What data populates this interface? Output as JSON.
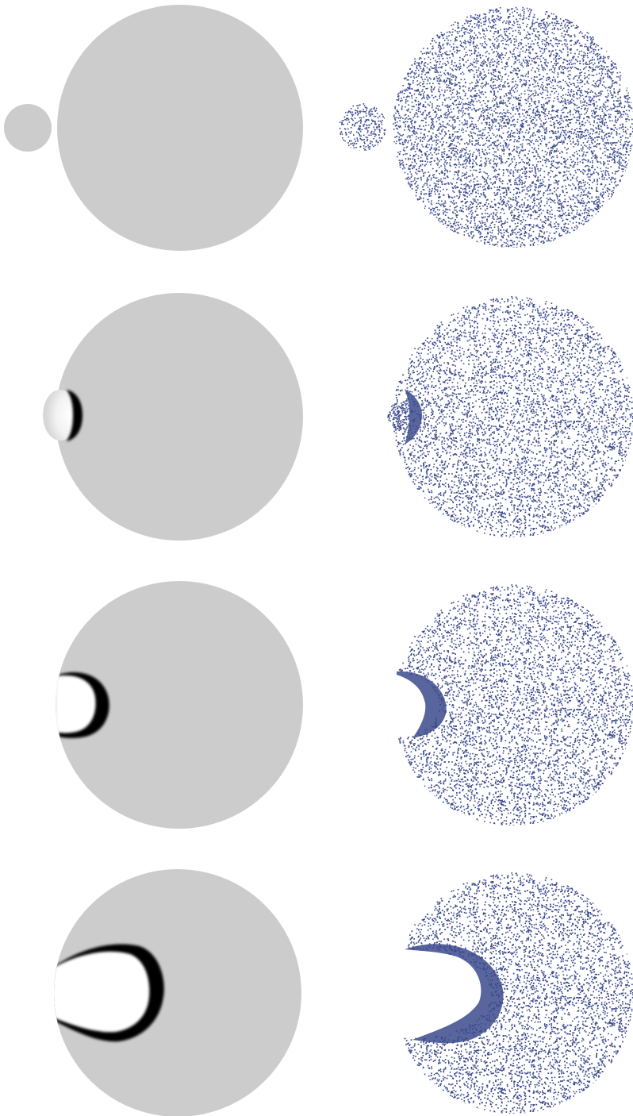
{
  "figure": {
    "description_visible_text": "",
    "layout": {
      "rows": 4,
      "columns": 2
    },
    "columns": [
      {
        "kind": "continuum-density-field"
      },
      {
        "kind": "particle-scatter"
      }
    ],
    "rows": [
      {
        "stage": 1,
        "state": "projectile-separate"
      },
      {
        "stage": 2,
        "state": "impact-onset"
      },
      {
        "stage": 3,
        "state": "crater-growth"
      },
      {
        "stage": 4,
        "state": "crater-deep"
      }
    ],
    "colors": {
      "background": "#ffffff",
      "body_fill": "#cccccc",
      "shock_front": "#000000",
      "cavity": "#ffffff",
      "particles": "#3c4a8c"
    }
  }
}
